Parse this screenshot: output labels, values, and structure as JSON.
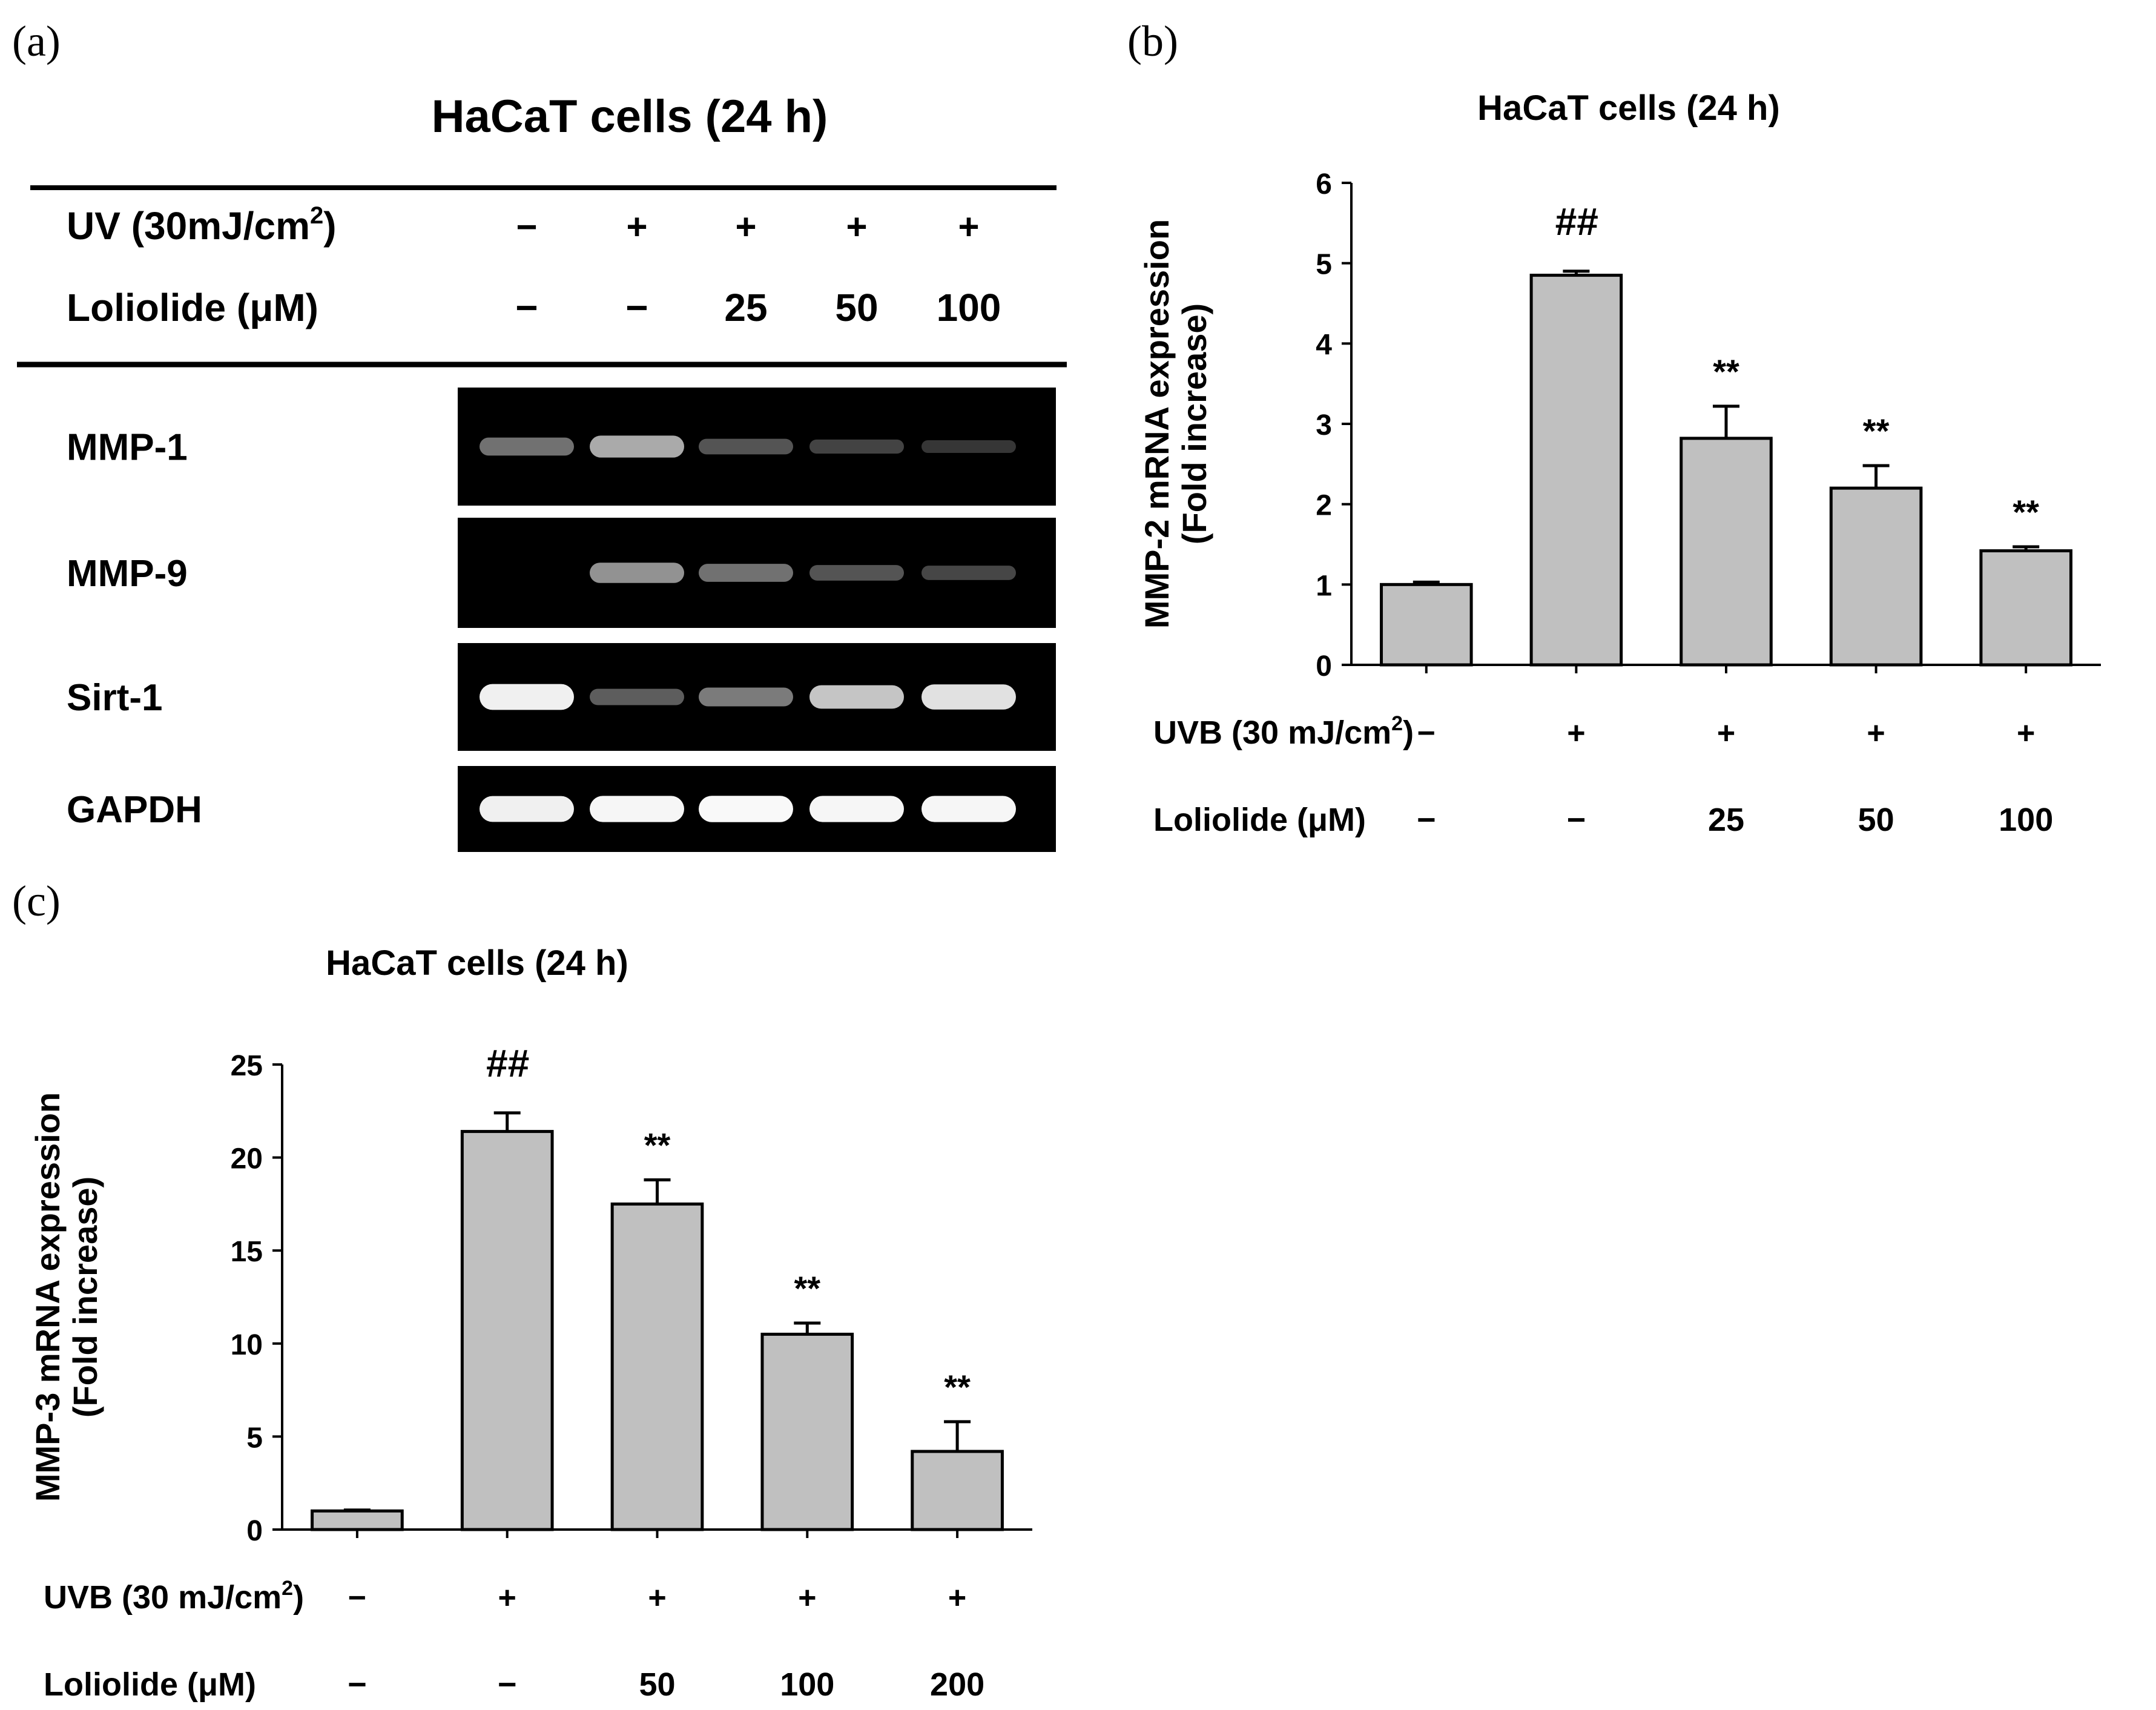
{
  "panels": {
    "a": {
      "panel_label": "(a)",
      "title": "HaCaT cells (24 h)",
      "uv_label_prefix": "UV (30mJ/cm",
      "uv_label_sup": "2",
      "uv_label_suffix": ")",
      "loliolide_label": "Loliolide (μM)",
      "uv_values": [
        "−",
        "+",
        "+",
        "+",
        "+"
      ],
      "loliolide_values": [
        "−",
        "−",
        "25",
        "50",
        "100"
      ],
      "gel_rows": [
        {
          "label": "MMP-1",
          "intensities": [
            0.45,
            0.7,
            0.3,
            0.2,
            0.12
          ]
        },
        {
          "label": "MMP-9",
          "intensities": [
            0.0,
            0.6,
            0.45,
            0.3,
            0.22
          ]
        },
        {
          "label": "Sirt-1",
          "intensities": [
            0.95,
            0.35,
            0.5,
            0.8,
            0.9
          ]
        },
        {
          "label": "GAPDH",
          "intensities": [
            0.95,
            0.97,
            0.98,
            0.97,
            0.97
          ]
        }
      ]
    },
    "b": {
      "panel_label": "(b)"
    },
    "c": {
      "panel_label": "(c)"
    }
  },
  "chart_data": [
    {
      "panel": "b",
      "type": "bar",
      "title": "HaCaT cells (24 h)",
      "ylabel": [
        "MMP-2 mRNA expression",
        "(Fold increase)"
      ],
      "ylim": [
        0,
        6
      ],
      "yticks": [
        "0",
        "1",
        "2",
        "3",
        "4",
        "5",
        "6"
      ],
      "values": [
        1.0,
        4.85,
        2.82,
        2.2,
        1.42
      ],
      "errors": [
        0.03,
        0.05,
        0.4,
        0.28,
        0.05
      ],
      "annotations": [
        "",
        "##",
        "**",
        "**",
        "**"
      ],
      "uvb_label_prefix": "UVB (30 mJ/cm",
      "uvb_label_sup": "2",
      "uvb_label_suffix": ")",
      "loliolide_label": "Loliolide (μM)",
      "uvb_values": [
        "−",
        "+",
        "+",
        "+",
        "+"
      ],
      "loliolide_values": [
        "−",
        "−",
        "25",
        "50",
        "100"
      ],
      "bar_color": "#c0c0c0",
      "grid": false
    },
    {
      "panel": "c",
      "type": "bar",
      "title": "HaCaT cells (24 h)",
      "ylabel": [
        "MMP-3 mRNA expression",
        "(Fold increase)"
      ],
      "ylim": [
        0,
        25
      ],
      "yticks": [
        "0",
        "5",
        "10",
        "15",
        "20",
        "25"
      ],
      "values": [
        1.0,
        21.4,
        17.5,
        10.5,
        4.2
      ],
      "errors": [
        0.05,
        1.0,
        1.3,
        0.6,
        1.6
      ],
      "annotations": [
        "",
        "##",
        "**",
        "**",
        "**"
      ],
      "uvb_label_prefix": "UVB (30 mJ/cm",
      "uvb_label_sup": "2",
      "uvb_label_suffix": ")",
      "loliolide_label": "Loliolide (μM)",
      "uvb_values": [
        "−",
        "+",
        "+",
        "+",
        "+"
      ],
      "loliolide_values": [
        "−",
        "−",
        "50",
        "100",
        "200"
      ],
      "bar_color": "#c0c0c0",
      "grid": false
    }
  ]
}
